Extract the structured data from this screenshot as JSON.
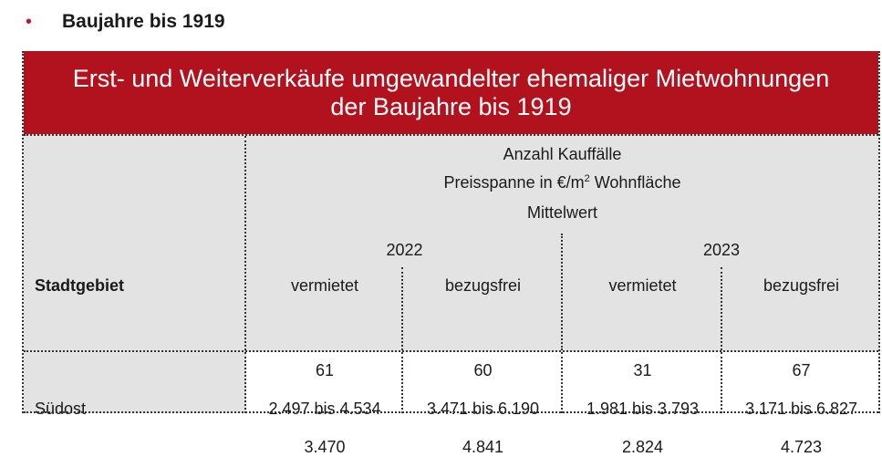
{
  "heading": {
    "bullet": "•",
    "text": "Baujahre bis 1919"
  },
  "table": {
    "title_line1": "Erst- und Weiterverkäufe umgewandelter ehemaliger Mietwohnungen",
    "title_line2": "der Baujahre bis 1919",
    "header_line1": "Anzahl Kauffälle",
    "header_line2_pre": "Preisspanne in €/m",
    "header_line2_sup": "2",
    "header_line2_post": " Wohnfläche",
    "header_line3": "Mittelwert",
    "years": [
      "2022",
      "2023"
    ],
    "column_labels": [
      "vermietet",
      "bezugsfrei",
      "vermietet",
      "bezugsfrei"
    ],
    "row_header": "Stadtgebiet",
    "rows": [
      {
        "region": "Südost",
        "cells": [
          {
            "count": "61",
            "range": "2.497 bis 4.534",
            "mean": "3.470"
          },
          {
            "count": "60",
            "range": "3.471 bis 6.190",
            "mean": "4.841"
          },
          {
            "count": "31",
            "range": "1.981 bis 3.793",
            "mean": "2.824"
          },
          {
            "count": "67",
            "range": "3.171 bis 6.827",
            "mean": "4.723"
          }
        ]
      }
    ]
  }
}
